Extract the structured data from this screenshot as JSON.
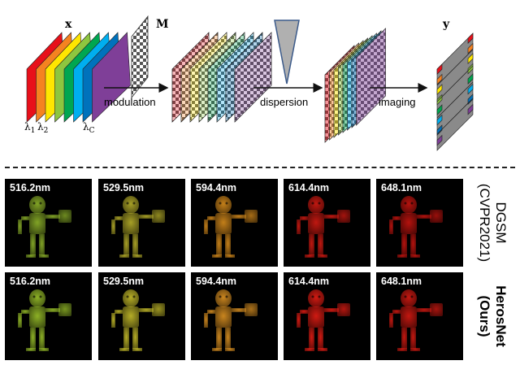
{
  "diagram": {
    "labels": {
      "x": "x",
      "m": "M",
      "y": "y",
      "modulation": "modulation",
      "dispersion": "dispersion",
      "imaging": "imaging"
    },
    "lambdas": [
      "λ1",
      "λ2",
      "λC"
    ],
    "band_colors": [
      "#e8101a",
      "#f58220",
      "#ffe600",
      "#8dc63f",
      "#00a651",
      "#00aeef",
      "#0072bc",
      "#7f3f98"
    ]
  },
  "rows": [
    {
      "method": "DGSM",
      "venue": "(CVPR2021)",
      "bold": false,
      "panels": [
        {
          "wavelength": "516.2nm",
          "color": "#8fb52a"
        },
        {
          "wavelength": "529.5nm",
          "color": "#b9b12a"
        },
        {
          "wavelength": "594.4nm",
          "color": "#d98d1c"
        },
        {
          "wavelength": "614.4nm",
          "color": "#d61a12"
        },
        {
          "wavelength": "648.1nm",
          "color": "#c8140f"
        }
      ]
    },
    {
      "method": "HerosNet",
      "venue": "(Ours)",
      "bold": true,
      "panels": [
        {
          "wavelength": "516.2nm",
          "color": "#9cc42a"
        },
        {
          "wavelength": "529.5nm",
          "color": "#c9c02b"
        },
        {
          "wavelength": "594.4nm",
          "color": "#e09422"
        },
        {
          "wavelength": "614.4nm",
          "color": "#e81d14"
        },
        {
          "wavelength": "648.1nm",
          "color": "#d81a12"
        }
      ]
    }
  ]
}
